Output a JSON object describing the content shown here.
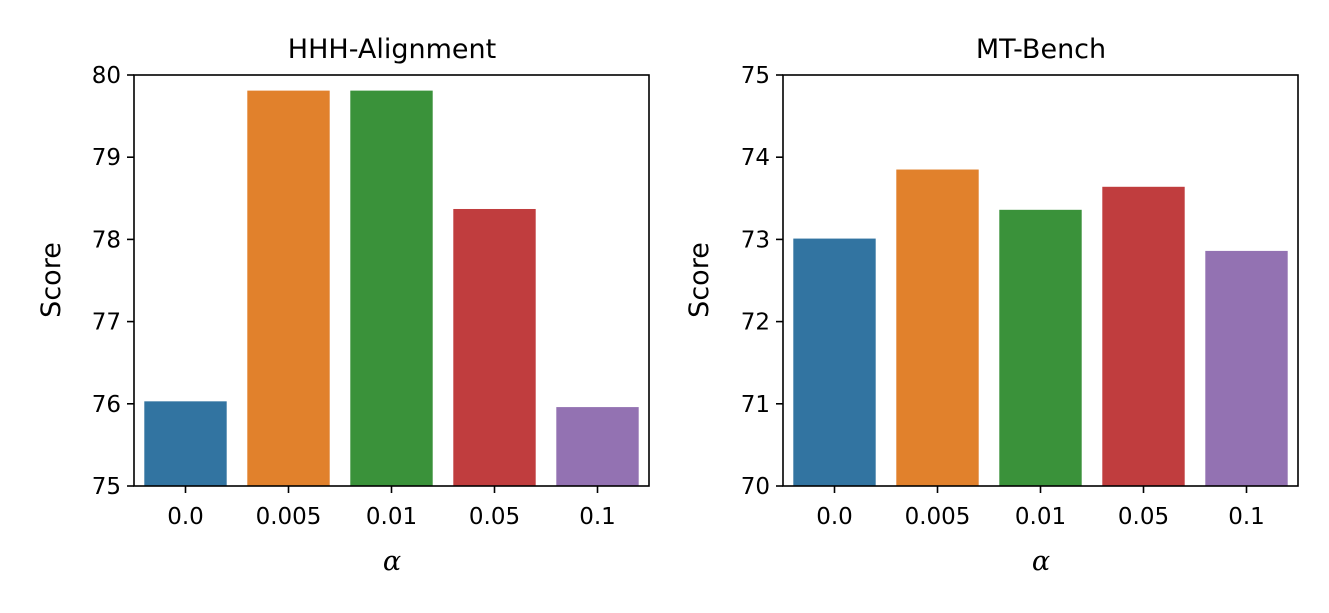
{
  "chart_data": [
    {
      "type": "bar",
      "title": "HHH-Alignment",
      "xlabel": "α",
      "ylabel": "Score",
      "categories": [
        "0.0",
        "0.005",
        "0.01",
        "0.05",
        "0.1"
      ],
      "values": [
        76.03,
        79.81,
        79.81,
        78.37,
        75.96
      ],
      "ylim": [
        75,
        80
      ],
      "yticks": [
        "75",
        "76",
        "77",
        "78",
        "79",
        "80"
      ],
      "colors": [
        "#3274a1",
        "#e1812c",
        "#3a923a",
        "#c03d3e",
        "#9372b2"
      ],
      "grid": false
    },
    {
      "type": "bar",
      "title": "MT-Bench",
      "xlabel": "α",
      "ylabel": "Score",
      "categories": [
        "0.0",
        "0.005",
        "0.01",
        "0.05",
        "0.1"
      ],
      "values": [
        73.01,
        73.85,
        73.36,
        73.64,
        72.86
      ],
      "ylim": [
        70,
        75
      ],
      "yticks": [
        "70",
        "71",
        "72",
        "73",
        "74",
        "75"
      ],
      "colors": [
        "#3274a1",
        "#e1812c",
        "#3a923a",
        "#c03d3e",
        "#9372b2"
      ],
      "grid": false
    }
  ]
}
